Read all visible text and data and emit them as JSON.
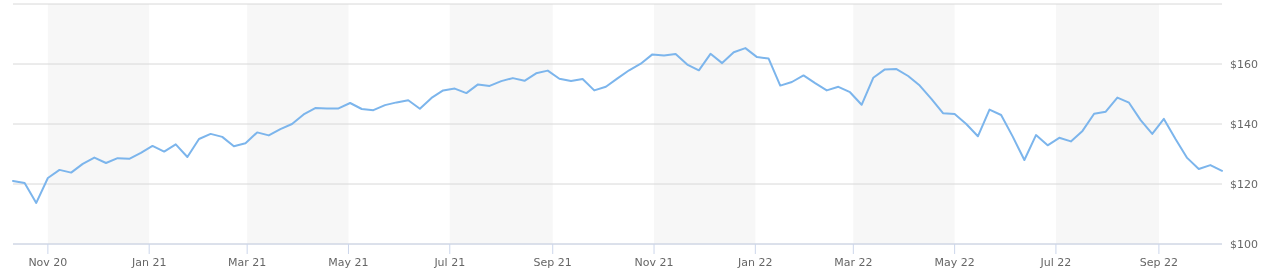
{
  "chart_data": {
    "type": "line",
    "grid": "y",
    "tick_labels": true,
    "x": [
      "2020-10-11",
      "2020-10-18",
      "2020-10-25",
      "2020-11-01",
      "2020-11-08",
      "2020-11-15",
      "2020-11-22",
      "2020-11-29",
      "2020-12-06",
      "2020-12-13",
      "2020-12-20",
      "2020-12-27",
      "2021-01-03",
      "2021-01-10",
      "2021-01-17",
      "2021-01-24",
      "2021-01-31",
      "2021-02-07",
      "2021-02-14",
      "2021-02-21",
      "2021-02-28",
      "2021-03-07",
      "2021-03-14",
      "2021-03-21",
      "2021-03-28",
      "2021-04-04",
      "2021-04-11",
      "2021-04-18",
      "2021-04-25",
      "2021-05-02",
      "2021-05-09",
      "2021-05-16",
      "2021-05-23",
      "2021-05-30",
      "2021-06-06",
      "2021-06-13",
      "2021-06-20",
      "2021-06-27",
      "2021-07-04",
      "2021-07-11",
      "2021-07-18",
      "2021-07-25",
      "2021-08-01",
      "2021-08-08",
      "2021-08-15",
      "2021-08-22",
      "2021-08-29",
      "2021-09-05",
      "2021-09-12",
      "2021-09-19",
      "2021-09-26",
      "2021-10-03",
      "2021-10-10",
      "2021-10-17",
      "2021-10-24",
      "2021-10-31",
      "2021-11-07",
      "2021-11-14",
      "2021-11-21",
      "2021-11-28",
      "2021-12-05",
      "2021-12-12",
      "2021-12-19",
      "2021-12-26",
      "2022-01-02",
      "2022-01-09",
      "2022-01-16",
      "2022-01-23",
      "2022-01-30",
      "2022-02-06",
      "2022-02-13",
      "2022-02-20",
      "2022-02-27",
      "2022-03-06",
      "2022-03-13",
      "2022-03-20",
      "2022-03-27",
      "2022-04-03",
      "2022-04-10",
      "2022-04-17",
      "2022-04-24",
      "2022-05-01",
      "2022-05-08",
      "2022-05-15",
      "2022-05-22",
      "2022-05-29",
      "2022-06-05",
      "2022-06-12",
      "2022-06-19",
      "2022-06-26",
      "2022-07-03",
      "2022-07-10",
      "2022-07-17",
      "2022-07-24",
      "2022-07-31",
      "2022-08-07",
      "2022-08-14",
      "2022-08-21",
      "2022-08-28",
      "2022-09-04",
      "2022-09-11",
      "2022-09-18",
      "2022-09-25",
      "2022-10-02",
      "2022-10-09"
    ],
    "series": [
      {
        "color": "#7cb5ec",
        "values": [
          121.0,
          120.3,
          113.7,
          122.0,
          124.7,
          123.8,
          126.7,
          128.8,
          127.0,
          128.6,
          128.4,
          130.4,
          132.7,
          130.8,
          133.2,
          129.0,
          135.0,
          136.7,
          135.7,
          132.6,
          133.6,
          137.2,
          136.2,
          138.3,
          140.0,
          143.2,
          145.3,
          145.2,
          145.2,
          147.0,
          145.0,
          144.6,
          146.3,
          147.2,
          147.9,
          145.1,
          148.7,
          151.2,
          151.8,
          150.3,
          153.2,
          152.7,
          154.3,
          155.3,
          154.4,
          156.9,
          157.8,
          155.1,
          154.3,
          155.0,
          151.2,
          152.4,
          155.2,
          157.9,
          160.1,
          163.2,
          162.8,
          163.3,
          159.8,
          157.9,
          163.4,
          160.3,
          163.9,
          165.3,
          162.3,
          161.8,
          152.8,
          154.0,
          156.2,
          153.6,
          151.2,
          152.4,
          150.6,
          146.4,
          155.4,
          158.2,
          158.3,
          156.0,
          152.8,
          148.4,
          143.6,
          143.3,
          140.0,
          135.9,
          144.8,
          143.0,
          135.8,
          128.0,
          136.3,
          132.9,
          135.4,
          134.2,
          137.7,
          143.4,
          144.1,
          148.8,
          147.1,
          141.3,
          136.7,
          141.7,
          135.0,
          128.7,
          125.0,
          126.3,
          124.4
        ]
      }
    ],
    "xlim": [
      "2020-10-11",
      "2022-10-09"
    ],
    "xticks": [
      {
        "value": "2020-11-01",
        "label": "Nov 20"
      },
      {
        "value": "2021-01-01",
        "label": "Jan 21"
      },
      {
        "value": "2021-03-01",
        "label": "Mar 21"
      },
      {
        "value": "2021-05-01",
        "label": "May 21"
      },
      {
        "value": "2021-07-01",
        "label": "Jul 21"
      },
      {
        "value": "2021-09-01",
        "label": "Sep 21"
      },
      {
        "value": "2021-11-01",
        "label": "Nov 21"
      },
      {
        "value": "2022-01-01",
        "label": "Jan 22"
      },
      {
        "value": "2022-03-01",
        "label": "Mar 22"
      },
      {
        "value": "2022-05-01",
        "label": "May 22"
      },
      {
        "value": "2022-07-01",
        "label": "Jul 22"
      },
      {
        "value": "2022-09-01",
        "label": "Sep 22"
      }
    ],
    "ylim": [
      100,
      180
    ],
    "yticks": [
      {
        "value": 100,
        "label": "$100"
      },
      {
        "value": 120,
        "label": "$120"
      },
      {
        "value": 140,
        "label": "$140"
      },
      {
        "value": 160,
        "label": "$160"
      },
      {
        "value": 180,
        "label": null
      }
    ],
    "bands": [
      {
        "axis": "x",
        "from": "2020-11-01",
        "to": "2021-01-01",
        "color": "#f7f7f7"
      },
      {
        "axis": "x",
        "from": "2021-03-01",
        "to": "2021-05-01",
        "color": "#f7f7f7"
      },
      {
        "axis": "x",
        "from": "2021-07-01",
        "to": "2021-09-01",
        "color": "#f7f7f7"
      },
      {
        "axis": "x",
        "from": "2021-11-01",
        "to": "2022-01-01",
        "color": "#f7f7f7"
      },
      {
        "axis": "x",
        "from": "2022-03-01",
        "to": "2022-05-01",
        "color": "#f7f7f7"
      },
      {
        "axis": "x",
        "from": "2022-07-01",
        "to": "2022-09-01",
        "color": "#f7f7f7"
      }
    ],
    "line_style": "solid",
    "marker": "none"
  }
}
